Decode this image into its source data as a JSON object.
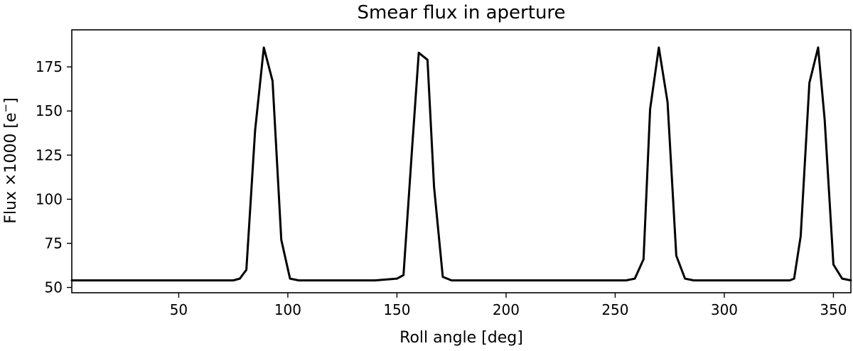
{
  "chart_data": {
    "type": "line",
    "title": "Smear flux in aperture",
    "xlabel": "Roll angle [deg]",
    "ylabel_main": "Flux ×1000 [e",
    "ylabel_sup": "−",
    "ylabel_end": "]",
    "xlim": [
      1,
      358
    ],
    "ylim": [
      47,
      196
    ],
    "xticks": [
      50,
      100,
      150,
      200,
      250,
      300,
      350
    ],
    "yticks": [
      50,
      75,
      100,
      125,
      150,
      175
    ],
    "grid": false,
    "series": [
      {
        "color": "#000000",
        "x": [
          1,
          10,
          20,
          30,
          40,
          50,
          60,
          70,
          75,
          78,
          81,
          85,
          89,
          93,
          97,
          101,
          105,
          110,
          120,
          130,
          140,
          150,
          153,
          157,
          160,
          164,
          167,
          171,
          175,
          180,
          190,
          200,
          210,
          220,
          230,
          240,
          250,
          255,
          259,
          263,
          266,
          270,
          274,
          278,
          282,
          286,
          290,
          300,
          310,
          320,
          330,
          332,
          335,
          339,
          343,
          346,
          350,
          354,
          358
        ],
        "y": [
          54,
          54,
          54,
          54,
          54,
          54,
          54,
          54,
          54,
          55,
          60,
          139,
          186,
          167,
          77,
          55,
          54,
          54,
          54,
          54,
          54,
          55,
          57,
          130,
          183,
          179,
          107,
          56,
          54,
          54,
          54,
          54,
          54,
          54,
          54,
          54,
          54,
          54,
          55,
          66,
          151,
          186,
          155,
          68,
          55,
          54,
          54,
          54,
          54,
          54,
          54,
          55,
          79,
          166,
          186,
          145,
          63,
          55,
          54
        ]
      }
    ]
  }
}
